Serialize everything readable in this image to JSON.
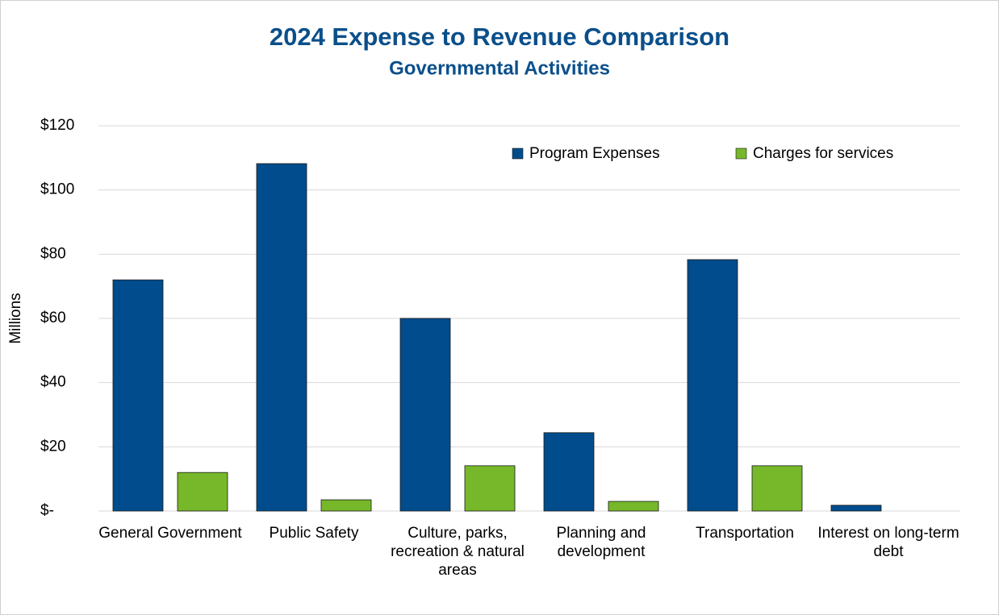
{
  "chart_data": {
    "type": "bar",
    "title": "2024 Expense to Revenue Comparison",
    "subtitle": "Governmental Activities",
    "y_label": "Millions",
    "categories": [
      "General Government",
      "Public Safety",
      "Culture, parks, recreation & natural areas",
      "Planning and development",
      "Transportation",
      "Interest on long-term debt"
    ],
    "series": [
      {
        "name": "Program Expenses",
        "color": "#004c8c",
        "values": [
          72.0,
          108.2,
          60.0,
          24.4,
          78.3,
          1.8
        ]
      },
      {
        "name": "Charges for services",
        "color": "#76b82a",
        "values": [
          12.0,
          3.5,
          14.1,
          3.0,
          14.1,
          0
        ]
      }
    ],
    "ylim": [
      0,
      120
    ],
    "yticks": [
      {
        "value": 0,
        "label": "$-"
      },
      {
        "value": 20,
        "label": "$20"
      },
      {
        "value": 40,
        "label": "$40"
      },
      {
        "value": 60,
        "label": "$60"
      },
      {
        "value": 80,
        "label": "$80"
      },
      {
        "value": 100,
        "label": "$100"
      },
      {
        "value": 120,
        "label": "$120"
      }
    ],
    "grid": true,
    "legend": "top-right"
  }
}
